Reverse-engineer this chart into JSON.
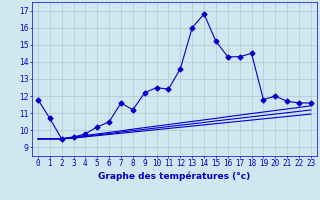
{
  "xlabel": "Graphe des températures (°c)",
  "hours": [
    0,
    1,
    2,
    3,
    4,
    5,
    6,
    7,
    8,
    9,
    10,
    11,
    12,
    13,
    14,
    15,
    16,
    17,
    18,
    19,
    20,
    21,
    22,
    23
  ],
  "temp_main": [
    11.8,
    10.7,
    9.5,
    9.6,
    9.8,
    10.2,
    10.5,
    11.6,
    11.2,
    12.2,
    12.5,
    12.4,
    13.6,
    16.0,
    16.8,
    15.2,
    14.3,
    14.3,
    14.5,
    11.8,
    12.0,
    11.7,
    11.6,
    11.6
  ],
  "temp_line1": [
    9.5,
    9.5,
    9.5,
    9.55,
    9.62,
    9.69,
    9.76,
    9.83,
    9.9,
    9.97,
    10.04,
    10.11,
    10.18,
    10.25,
    10.32,
    10.39,
    10.46,
    10.53,
    10.6,
    10.67,
    10.74,
    10.81,
    10.88,
    10.95
  ],
  "temp_line2": [
    9.5,
    9.5,
    9.5,
    9.57,
    9.65,
    9.73,
    9.81,
    9.9,
    9.98,
    10.06,
    10.14,
    10.22,
    10.3,
    10.38,
    10.46,
    10.55,
    10.63,
    10.71,
    10.79,
    10.87,
    10.95,
    11.03,
    11.11,
    11.19
  ],
  "temp_line3": [
    9.5,
    9.5,
    9.52,
    9.61,
    9.7,
    9.79,
    9.88,
    9.97,
    10.07,
    10.16,
    10.25,
    10.34,
    10.43,
    10.52,
    10.61,
    10.7,
    10.8,
    10.89,
    10.98,
    11.07,
    11.16,
    11.25,
    11.34,
    11.43
  ],
  "ylim": [
    8.5,
    17.5
  ],
  "yticks": [
    9,
    10,
    11,
    12,
    13,
    14,
    15,
    16,
    17
  ],
  "bg_color": "#cfe8f0",
  "line_color": "#0000cc",
  "grid_color": "#b0c8d0",
  "marker": "D",
  "marker_size": 2.5,
  "line_width": 0.8,
  "tick_fontsize": 5.5,
  "xlabel_fontsize": 6.5
}
